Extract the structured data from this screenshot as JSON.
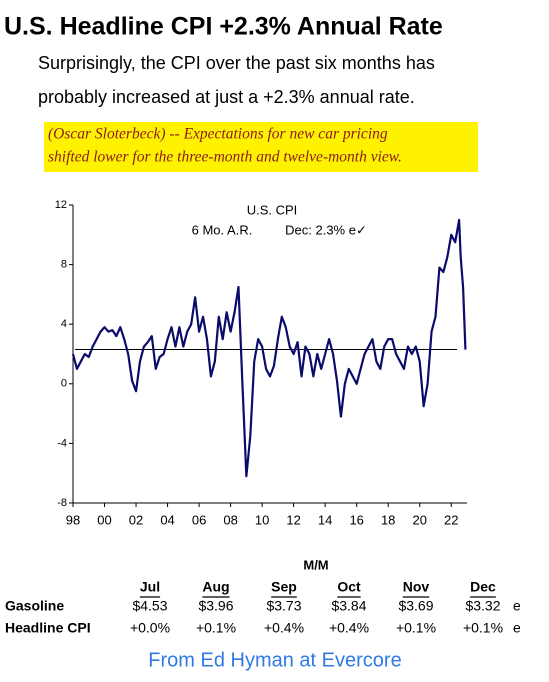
{
  "header": {
    "title": "U.S. Headline CPI +2.3% Annual Rate",
    "subtitle_lines": [
      "Surprisingly, the CPI over the past six months has",
      "probably increased at just a +2.3% annual rate."
    ]
  },
  "quote_lines": [
    "(Oscar Sloterbeck) -- Expectations for new car pricing",
    "shifted lower for the three-month and twelve-month view."
  ],
  "chart_data": {
    "type": "line",
    "title": "U.S. CPI",
    "annotations": [
      "6 Mo. A.R.",
      "Dec: 2.3% e✓"
    ],
    "reference_line": 2.3,
    "xlim": [
      1998,
      2023
    ],
    "ylim": [
      -8,
      12
    ],
    "xticks": [
      {
        "value": 1998,
        "label": "98"
      },
      {
        "value": 2000,
        "label": "00"
      },
      {
        "value": 2002,
        "label": "02"
      },
      {
        "value": 2004,
        "label": "04"
      },
      {
        "value": 2006,
        "label": "06"
      },
      {
        "value": 2008,
        "label": "08"
      },
      {
        "value": 2010,
        "label": "10"
      },
      {
        "value": 2012,
        "label": "12"
      },
      {
        "value": 2014,
        "label": "14"
      },
      {
        "value": 2016,
        "label": "16"
      },
      {
        "value": 2018,
        "label": "18"
      },
      {
        "value": 2020,
        "label": "20"
      },
      {
        "value": 2022,
        "label": "22"
      }
    ],
    "yticks": [
      -8,
      -4,
      0,
      4,
      8,
      12
    ],
    "series": [
      {
        "name": "U.S. CPI",
        "color": "#0b0b6b",
        "x": [
          1998.0,
          1998.25,
          1998.5,
          1998.75,
          1999.0,
          1999.25,
          1999.5,
          1999.75,
          2000.0,
          2000.25,
          2000.5,
          2000.75,
          2001.0,
          2001.25,
          2001.5,
          2001.75,
          2002.0,
          2002.25,
          2002.5,
          2002.75,
          2003.0,
          2003.25,
          2003.5,
          2003.75,
          2004.0,
          2004.25,
          2004.5,
          2004.75,
          2005.0,
          2005.25,
          2005.5,
          2005.75,
          2006.0,
          2006.25,
          2006.5,
          2006.75,
          2007.0,
          2007.25,
          2007.5,
          2007.75,
          2008.0,
          2008.25,
          2008.5,
          2008.75,
          2009.0,
          2009.25,
          2009.5,
          2009.75,
          2010.0,
          2010.25,
          2010.5,
          2010.75,
          2011.0,
          2011.25,
          2011.5,
          2011.75,
          2012.0,
          2012.25,
          2012.5,
          2012.75,
          2013.0,
          2013.25,
          2013.5,
          2013.75,
          2014.0,
          2014.25,
          2014.5,
          2014.75,
          2015.0,
          2015.25,
          2015.5,
          2015.75,
          2016.0,
          2016.25,
          2016.5,
          2016.75,
          2017.0,
          2017.25,
          2017.5,
          2017.75,
          2018.0,
          2018.25,
          2018.5,
          2018.75,
          2019.0,
          2019.25,
          2019.5,
          2019.75,
          2020.0,
          2020.25,
          2020.5,
          2020.75,
          2021.0,
          2021.25,
          2021.5,
          2021.75,
          2022.0,
          2022.25,
          2022.5,
          2022.6,
          2022.75,
          2022.9
        ],
        "values": [
          2.0,
          1.0,
          1.5,
          2.0,
          1.8,
          2.5,
          3.0,
          3.5,
          3.8,
          3.5,
          3.6,
          3.2,
          3.8,
          3.0,
          2.0,
          0.2,
          -0.5,
          1.5,
          2.5,
          2.8,
          3.2,
          1.0,
          1.8,
          2.0,
          3.0,
          3.8,
          2.5,
          3.8,
          2.5,
          3.5,
          4.0,
          5.8,
          3.5,
          4.5,
          3.0,
          0.5,
          1.5,
          4.5,
          3.0,
          4.8,
          3.5,
          4.8,
          6.5,
          0.0,
          -6.2,
          -3.5,
          1.5,
          3.0,
          2.5,
          1.0,
          0.5,
          1.2,
          3.0,
          4.5,
          3.8,
          2.5,
          2.0,
          2.8,
          0.5,
          2.5,
          2.0,
          0.5,
          2.0,
          1.0,
          2.0,
          3.0,
          2.0,
          0.2,
          -2.2,
          0.0,
          1.0,
          0.5,
          0.0,
          1.0,
          2.0,
          2.5,
          3.0,
          1.5,
          1.0,
          2.5,
          3.0,
          3.0,
          2.0,
          1.5,
          1.0,
          2.5,
          2.0,
          2.5,
          1.5,
          -1.5,
          0.0,
          3.5,
          4.5,
          7.8,
          7.5,
          8.5,
          10.0,
          9.5,
          11.0,
          8.5,
          6.5,
          2.3
        ]
      }
    ]
  },
  "table": {
    "header": "M/M",
    "columns": [
      "Jul",
      "Aug",
      "Sep",
      "Oct",
      "Nov",
      "Dec"
    ],
    "rows": [
      {
        "label": "Gasoline",
        "cells": [
          "$4.53",
          "$3.96",
          "$3.73",
          "$3.84",
          "$3.69",
          "$3.32"
        ],
        "suffix": "e"
      },
      {
        "label": "Headline CPI",
        "cells": [
          "+0.0%",
          "+0.1%",
          "+0.4%",
          "+0.4%",
          "+0.1%",
          "+0.1%"
        ],
        "suffix": "e"
      }
    ]
  },
  "footer": "From Ed Hyman at Evercore"
}
